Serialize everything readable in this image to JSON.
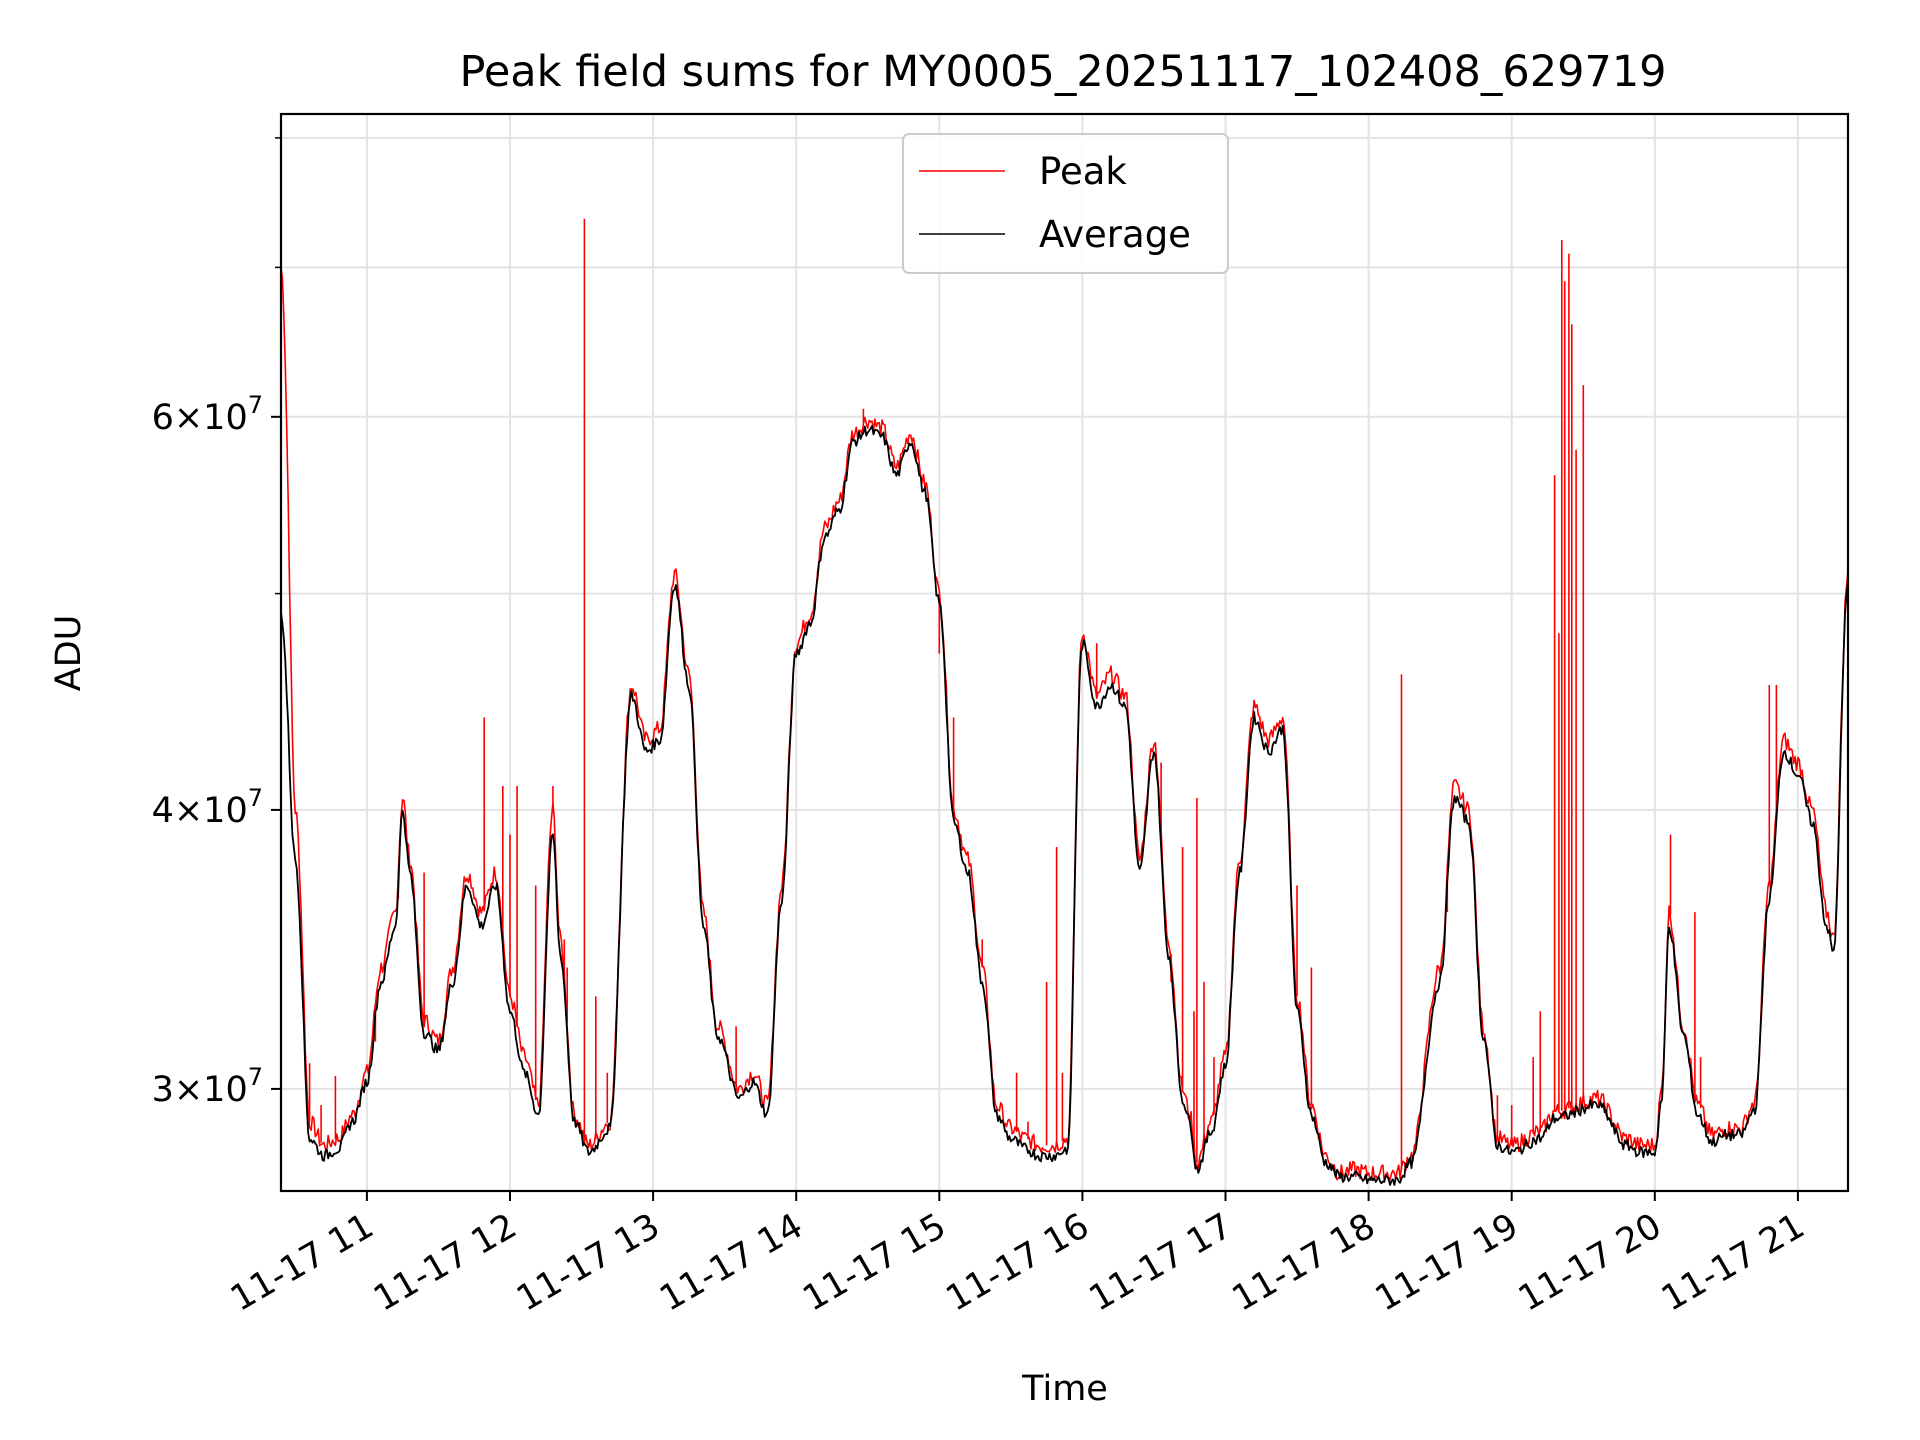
{
  "chart_data": {
    "type": "line",
    "title": "Peak field sums for MY0005_20251117_102408_629719",
    "xlabel": "Time",
    "ylabel": "ADU",
    "yscale": "log",
    "grid": true,
    "legend_position": "top-center",
    "xlim": [
      10.4,
      21.35
    ],
    "ylim": [
      27000000,
      82000000
    ],
    "x_ticks": [
      {
        "value": 11,
        "label": "11-17 11"
      },
      {
        "value": 12,
        "label": "11-17 12"
      },
      {
        "value": 13,
        "label": "11-17 13"
      },
      {
        "value": 14,
        "label": "11-17 14"
      },
      {
        "value": 15,
        "label": "11-17 15"
      },
      {
        "value": 16,
        "label": "11-17 16"
      },
      {
        "value": 17,
        "label": "11-17 17"
      },
      {
        "value": 18,
        "label": "11-17 18"
      },
      {
        "value": 19,
        "label": "11-17 19"
      },
      {
        "value": 20,
        "label": "11-17 20"
      },
      {
        "value": 21,
        "label": "11-17 21"
      }
    ],
    "y_ticks": [
      {
        "value": 30000000,
        "mant": "3",
        "base": "10",
        "exp": "7"
      },
      {
        "value": 40000000,
        "mant": "4",
        "base": "10",
        "exp": "7"
      },
      {
        "value": 60000000,
        "mant": "6",
        "base": "10",
        "exp": "7"
      }
    ],
    "y_minor_ticks": [
      50000000,
      70000000,
      80000000
    ],
    "x_unit": "hour of 2025-11-17",
    "y_unit": "ADU (millions)",
    "series": [
      {
        "name": "Peak",
        "color": "#ff0000",
        "style": "line",
        "points": [
          [
            10.4,
            70
          ],
          [
            10.5,
            40
          ],
          [
            10.6,
            29
          ],
          [
            10.7,
            28.3
          ],
          [
            10.8,
            28.5
          ],
          [
            10.9,
            29.2
          ],
          [
            11.0,
            30.5
          ],
          [
            11.1,
            34
          ],
          [
            11.2,
            36
          ],
          [
            11.25,
            40.5
          ],
          [
            11.3,
            38
          ],
          [
            11.4,
            32.2
          ],
          [
            11.5,
            31.5
          ],
          [
            11.6,
            34
          ],
          [
            11.7,
            37.5
          ],
          [
            11.8,
            36
          ],
          [
            11.9,
            37.5
          ],
          [
            12.0,
            33
          ],
          [
            12.1,
            31
          ],
          [
            12.2,
            29.5
          ],
          [
            12.3,
            40
          ],
          [
            12.35,
            35
          ],
          [
            12.45,
            29.2
          ],
          [
            12.55,
            28.3
          ],
          [
            12.7,
            29
          ],
          [
            12.85,
            45.5
          ],
          [
            12.95,
            43
          ],
          [
            13.05,
            43.5
          ],
          [
            13.15,
            51
          ],
          [
            13.25,
            46
          ],
          [
            13.35,
            36
          ],
          [
            13.45,
            32
          ],
          [
            13.6,
            30
          ],
          [
            13.7,
            30.5
          ],
          [
            13.8,
            29.5
          ],
          [
            13.9,
            37
          ],
          [
            14.0,
            47.5
          ],
          [
            14.1,
            49
          ],
          [
            14.2,
            53.5
          ],
          [
            14.3,
            55
          ],
          [
            14.4,
            59
          ],
          [
            14.5,
            59.8
          ],
          [
            14.6,
            59.3
          ],
          [
            14.7,
            57
          ],
          [
            14.8,
            59
          ],
          [
            14.9,
            56
          ],
          [
            15.0,
            50
          ],
          [
            15.1,
            40
          ],
          [
            15.2,
            38
          ],
          [
            15.3,
            34
          ],
          [
            15.4,
            29.5
          ],
          [
            15.5,
            28.8
          ],
          [
            15.6,
            28.5
          ],
          [
            15.7,
            28.3
          ],
          [
            15.8,
            28.3
          ],
          [
            15.9,
            28.5
          ],
          [
            16.0,
            48
          ],
          [
            16.1,
            45
          ],
          [
            16.2,
            46
          ],
          [
            16.3,
            45
          ],
          [
            16.4,
            38
          ],
          [
            16.5,
            43
          ],
          [
            16.6,
            35
          ],
          [
            16.7,
            30
          ],
          [
            16.75,
            29.2
          ],
          [
            16.8,
            27.8
          ],
          [
            16.9,
            29
          ],
          [
            17.0,
            31
          ],
          [
            17.1,
            38
          ],
          [
            17.2,
            44.5
          ],
          [
            17.3,
            43
          ],
          [
            17.4,
            44
          ],
          [
            17.5,
            33
          ],
          [
            17.6,
            29.5
          ],
          [
            17.7,
            28
          ],
          [
            17.8,
            27.5
          ],
          [
            17.9,
            27.6
          ],
          [
            18.0,
            27.5
          ],
          [
            18.2,
            27.5
          ],
          [
            18.3,
            28
          ],
          [
            18.5,
            34
          ],
          [
            18.6,
            41
          ],
          [
            18.7,
            40
          ],
          [
            18.8,
            32
          ],
          [
            18.9,
            28.5
          ],
          [
            19.0,
            28.3
          ],
          [
            19.2,
            28.7
          ],
          [
            19.3,
            29.3
          ],
          [
            19.6,
            29.7
          ],
          [
            19.8,
            28.5
          ],
          [
            19.9,
            28.3
          ],
          [
            20.0,
            28.3
          ],
          [
            20.05,
            30
          ],
          [
            20.1,
            36
          ],
          [
            20.2,
            32
          ],
          [
            20.3,
            29.5
          ],
          [
            20.4,
            28.6
          ],
          [
            20.5,
            28.8
          ],
          [
            20.6,
            28.8
          ],
          [
            20.7,
            29.6
          ],
          [
            20.8,
            37
          ],
          [
            20.9,
            43
          ],
          [
            21.0,
            42
          ],
          [
            21.1,
            40
          ],
          [
            21.2,
            36
          ],
          [
            21.25,
            35
          ],
          [
            21.35,
            51
          ]
        ]
      },
      {
        "name": "Average",
        "color": "#000000",
        "style": "line",
        "points": [
          [
            10.4,
            49
          ],
          [
            10.5,
            38
          ],
          [
            10.6,
            28.5
          ],
          [
            10.7,
            28
          ],
          [
            10.8,
            28.2
          ],
          [
            10.9,
            29
          ],
          [
            11.0,
            30.2
          ],
          [
            11.1,
            33.5
          ],
          [
            11.2,
            35.5
          ],
          [
            11.25,
            40
          ],
          [
            11.3,
            37.5
          ],
          [
            11.4,
            31.8
          ],
          [
            11.5,
            31.2
          ],
          [
            11.6,
            33.5
          ],
          [
            11.7,
            37
          ],
          [
            11.8,
            35.5
          ],
          [
            11.9,
            37
          ],
          [
            12.0,
            32.5
          ],
          [
            12.1,
            30.5
          ],
          [
            12.2,
            29.2
          ],
          [
            12.3,
            39
          ],
          [
            12.35,
            34.5
          ],
          [
            12.45,
            29
          ],
          [
            12.55,
            28.1
          ],
          [
            12.7,
            28.8
          ],
          [
            12.85,
            45
          ],
          [
            12.95,
            42.5
          ],
          [
            13.05,
            43
          ],
          [
            13.15,
            50.5
          ],
          [
            13.25,
            45.5
          ],
          [
            13.35,
            35.5
          ],
          [
            13.45,
            31.7
          ],
          [
            13.6,
            29.7
          ],
          [
            13.7,
            30.2
          ],
          [
            13.8,
            29.2
          ],
          [
            13.9,
            36.5
          ],
          [
            14.0,
            47
          ],
          [
            14.1,
            48.5
          ],
          [
            14.2,
            53
          ],
          [
            14.3,
            54.5
          ],
          [
            14.4,
            58.5
          ],
          [
            14.5,
            59.2
          ],
          [
            14.6,
            58.8
          ],
          [
            14.7,
            56.5
          ],
          [
            14.8,
            58.5
          ],
          [
            14.9,
            55.5
          ],
          [
            15.0,
            49.5
          ],
          [
            15.1,
            39.5
          ],
          [
            15.2,
            37.5
          ],
          [
            15.3,
            33.5
          ],
          [
            15.4,
            29.2
          ],
          [
            15.5,
            28.5
          ],
          [
            15.6,
            28.2
          ],
          [
            15.7,
            28
          ],
          [
            15.8,
            28
          ],
          [
            15.9,
            28.2
          ],
          [
            16.0,
            47.5
          ],
          [
            16.1,
            44.5
          ],
          [
            16.2,
            45.5
          ],
          [
            16.3,
            44.5
          ],
          [
            16.4,
            37.5
          ],
          [
            16.5,
            42.5
          ],
          [
            16.6,
            34.5
          ],
          [
            16.7,
            29.7
          ],
          [
            16.75,
            29
          ],
          [
            16.8,
            27.6
          ],
          [
            16.9,
            28.7
          ],
          [
            17.0,
            30.7
          ],
          [
            17.1,
            37.5
          ],
          [
            17.2,
            44
          ],
          [
            17.3,
            42.5
          ],
          [
            17.4,
            43.5
          ],
          [
            17.5,
            32.5
          ],
          [
            17.6,
            29.2
          ],
          [
            17.7,
            27.8
          ],
          [
            17.8,
            27.4
          ],
          [
            17.9,
            27.4
          ],
          [
            18.0,
            27.3
          ],
          [
            18.2,
            27.3
          ],
          [
            18.3,
            27.8
          ],
          [
            18.5,
            33.5
          ],
          [
            18.6,
            40.5
          ],
          [
            18.7,
            39.5
          ],
          [
            18.8,
            31.7
          ],
          [
            18.9,
            28.3
          ],
          [
            19.0,
            28.1
          ],
          [
            19.2,
            28.5
          ],
          [
            19.3,
            29.1
          ],
          [
            19.6,
            29.5
          ],
          [
            19.8,
            28.3
          ],
          [
            19.9,
            28.1
          ],
          [
            20.0,
            28.1
          ],
          [
            20.05,
            29.7
          ],
          [
            20.1,
            35.5
          ],
          [
            20.2,
            31.7
          ],
          [
            20.3,
            29.2
          ],
          [
            20.4,
            28.4
          ],
          [
            20.5,
            28.6
          ],
          [
            20.6,
            28.6
          ],
          [
            20.7,
            29.4
          ],
          [
            20.8,
            36.5
          ],
          [
            20.9,
            42.5
          ],
          [
            21.0,
            41.5
          ],
          [
            21.1,
            39.5
          ],
          [
            21.2,
            35.5
          ],
          [
            21.25,
            34.5
          ],
          [
            21.35,
            50.5
          ]
        ]
      }
    ],
    "peak_spikes": [
      [
        10.4,
        74
      ],
      [
        10.6,
        30.8
      ],
      [
        10.68,
        29.5
      ],
      [
        10.78,
        30.4
      ],
      [
        11.06,
        31.5
      ],
      [
        11.22,
        36.5
      ],
      [
        11.4,
        37.5
      ],
      [
        11.82,
        44
      ],
      [
        11.95,
        41
      ],
      [
        12.0,
        39
      ],
      [
        12.05,
        41
      ],
      [
        12.18,
        37
      ],
      [
        12.3,
        41
      ],
      [
        12.38,
        35
      ],
      [
        12.4,
        34
      ],
      [
        12.52,
        73.6
      ],
      [
        12.6,
        33
      ],
      [
        12.68,
        30.5
      ],
      [
        13.58,
        32
      ],
      [
        14.47,
        60.5
      ],
      [
        15.0,
        47
      ],
      [
        15.06,
        43.5
      ],
      [
        15.1,
        44
      ],
      [
        15.24,
        36.5
      ],
      [
        15.3,
        35
      ],
      [
        15.54,
        30.5
      ],
      [
        15.62,
        29
      ],
      [
        15.75,
        33.5
      ],
      [
        15.82,
        38.5
      ],
      [
        15.86,
        30.5
      ],
      [
        16.1,
        47.5
      ],
      [
        16.42,
        38.5
      ],
      [
        16.55,
        42
      ],
      [
        16.62,
        33.5
      ],
      [
        16.7,
        38.5
      ],
      [
        16.78,
        32.5
      ],
      [
        16.8,
        40.5
      ],
      [
        16.85,
        33.5
      ],
      [
        16.92,
        31
      ],
      [
        17.2,
        44.5
      ],
      [
        17.5,
        37
      ],
      [
        17.6,
        34
      ],
      [
        18.23,
        46
      ],
      [
        18.55,
        36
      ],
      [
        18.9,
        29.8
      ],
      [
        19.0,
        29.5
      ],
      [
        19.15,
        31
      ],
      [
        19.2,
        32.5
      ],
      [
        19.3,
        56.5
      ],
      [
        19.33,
        48
      ],
      [
        19.35,
        72
      ],
      [
        19.37,
        69
      ],
      [
        19.4,
        71
      ],
      [
        19.42,
        66
      ],
      [
        19.45,
        58
      ],
      [
        19.5,
        62
      ],
      [
        20.11,
        39
      ],
      [
        20.28,
        36
      ],
      [
        20.32,
        31
      ],
      [
        20.8,
        45.5
      ],
      [
        20.85,
        45.5
      ]
    ]
  },
  "legend": {
    "peak_label": "Peak",
    "average_label": "Average"
  }
}
